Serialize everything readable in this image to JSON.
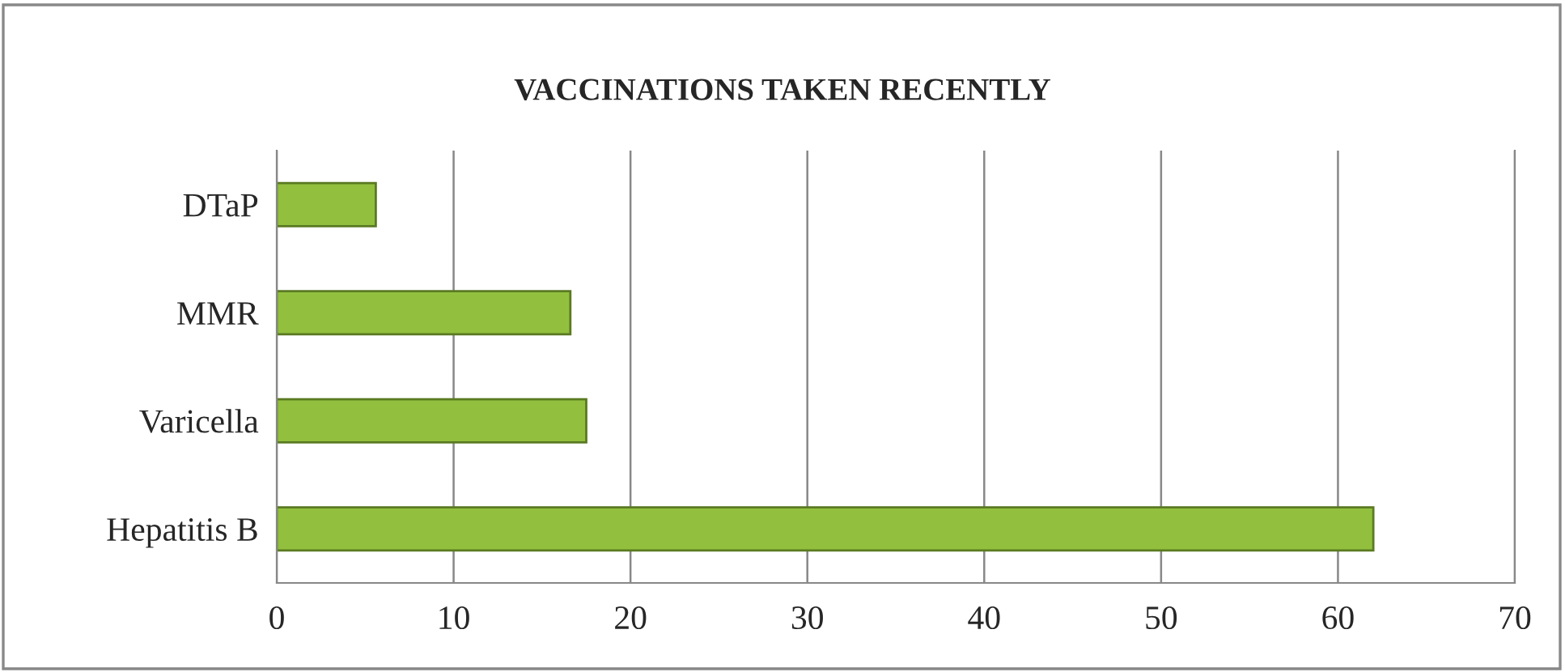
{
  "chart_data": {
    "type": "bar",
    "orientation": "horizontal",
    "title": "VACCINATIONS TAKEN RECENTLY",
    "categories": [
      "DTaP",
      "MMR",
      "Varicella",
      "Hepatitis B"
    ],
    "values": [
      5.6,
      16.6,
      17.5,
      62
    ],
    "color": "#92c03e",
    "xlim": [
      0,
      70
    ],
    "xticks": [
      0,
      10,
      20,
      30,
      40,
      50,
      60,
      70
    ],
    "grid": "x"
  }
}
